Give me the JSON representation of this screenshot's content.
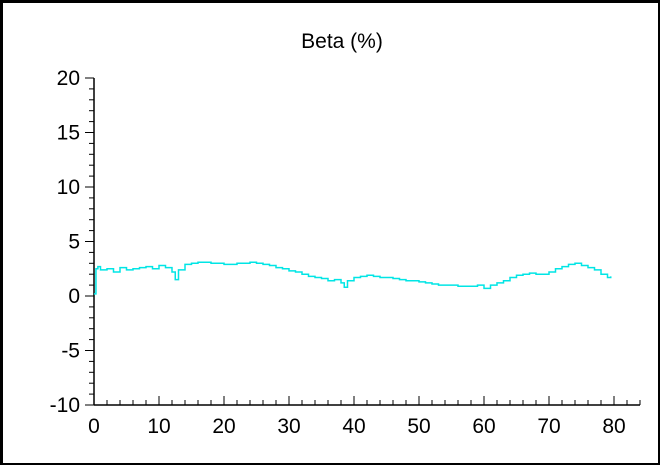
{
  "chart_data": {
    "type": "line",
    "title": "Beta (%)",
    "xlabel": "",
    "ylabel": "",
    "xlim": [
      0,
      84
    ],
    "ylim": [
      -10,
      20
    ],
    "x_ticks": [
      0,
      10,
      20,
      30,
      40,
      50,
      60,
      70,
      80
    ],
    "y_ticks": [
      -10,
      -5,
      0,
      5,
      10,
      15,
      20
    ],
    "grid": false,
    "line_color": "#00e5e5",
    "series": [
      {
        "x": [
          0,
          0.3,
          0.6,
          1,
          2,
          3,
          4,
          5,
          6,
          7,
          8,
          9,
          10,
          11,
          12,
          12.5,
          13,
          14,
          15,
          16,
          17,
          18,
          19,
          20,
          21,
          22,
          23,
          24,
          25,
          26,
          27,
          28,
          29,
          30,
          31,
          32,
          33,
          34,
          35,
          36,
          37,
          38,
          38.5,
          39,
          40,
          41,
          42,
          43,
          44,
          45,
          46,
          47,
          48,
          49,
          50,
          51,
          52,
          53,
          54,
          55,
          56,
          57,
          58,
          59,
          60,
          61,
          62,
          63,
          64,
          65,
          66,
          67,
          68,
          69,
          70,
          71,
          72,
          73,
          74,
          75,
          76,
          77,
          78,
          79,
          79.5
        ],
        "y": [
          0.2,
          2.5,
          2.7,
          2.4,
          2.5,
          2.2,
          2.6,
          2.4,
          2.5,
          2.6,
          2.7,
          2.5,
          2.8,
          2.6,
          2.2,
          1.5,
          2.4,
          2.9,
          3.0,
          3.1,
          3.1,
          3.0,
          3.0,
          2.9,
          2.9,
          3.0,
          3.0,
          3.1,
          3.0,
          2.9,
          2.8,
          2.6,
          2.5,
          2.3,
          2.2,
          2.0,
          1.8,
          1.7,
          1.6,
          1.4,
          1.5,
          1.2,
          0.8,
          1.4,
          1.7,
          1.8,
          1.9,
          1.8,
          1.7,
          1.7,
          1.6,
          1.5,
          1.4,
          1.4,
          1.3,
          1.2,
          1.1,
          1.0,
          1.0,
          1.0,
          0.9,
          0.9,
          0.9,
          1.0,
          0.7,
          1.0,
          1.2,
          1.4,
          1.7,
          1.9,
          2.0,
          2.1,
          2.0,
          2.0,
          2.2,
          2.5,
          2.7,
          2.9,
          3.0,
          2.8,
          2.6,
          2.4,
          2.0,
          1.7,
          1.8
        ]
      }
    ]
  }
}
